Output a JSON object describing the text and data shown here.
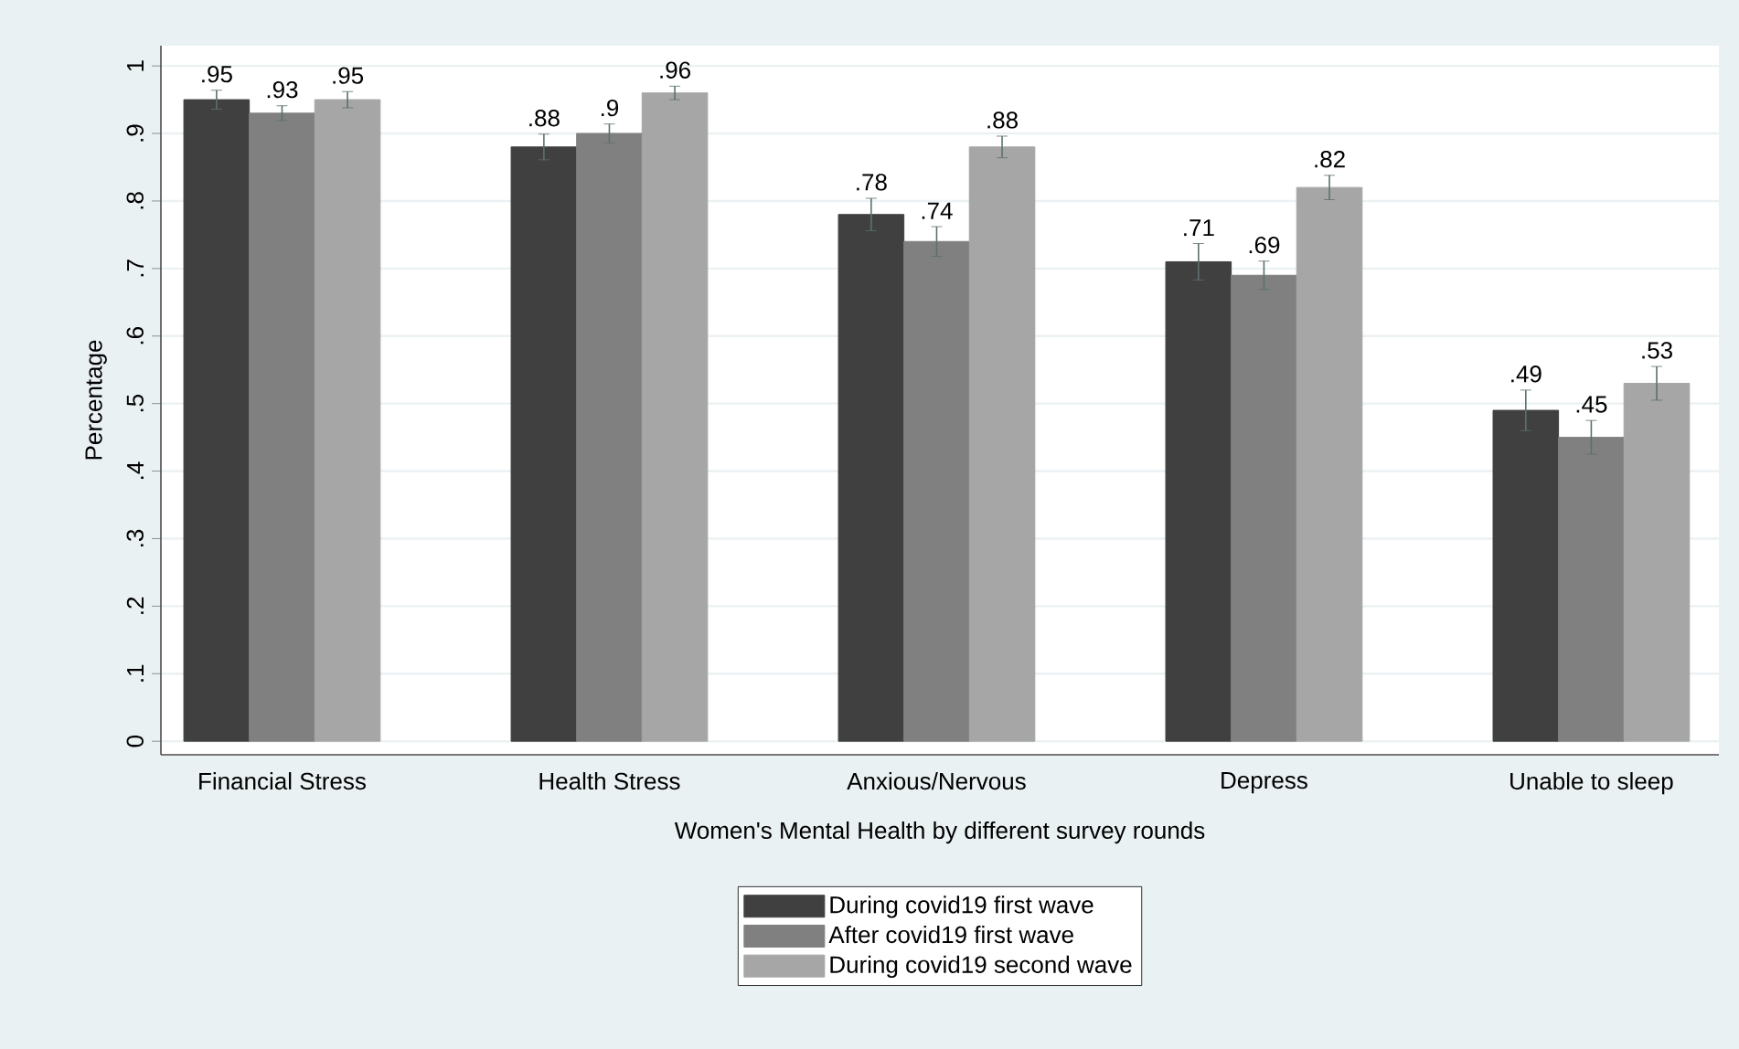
{
  "chart_data": {
    "type": "bar",
    "categories": [
      "Financial Stress",
      "Health Stress",
      "Anxious/Nervous",
      "Depress",
      "Unable to sleep"
    ],
    "series": [
      {
        "name": "During covid19 first wave",
        "color": "#404040",
        "values": [
          0.95,
          0.88,
          0.78,
          0.71,
          0.49
        ],
        "value_labels": [
          ".95",
          ".88",
          ".78",
          ".71",
          ".49"
        ],
        "errors": [
          0.014,
          0.019,
          0.024,
          0.027,
          0.03
        ]
      },
      {
        "name": "After covid19 first wave",
        "color": "#808080",
        "values": [
          0.93,
          0.9,
          0.74,
          0.69,
          0.45
        ],
        "value_labels": [
          ".93",
          ".9",
          ".74",
          ".69",
          ".45"
        ],
        "errors": [
          0.011,
          0.014,
          0.022,
          0.021,
          0.025
        ]
      },
      {
        "name": "During covid19 second wave",
        "color": "#a6a6a6",
        "values": [
          0.95,
          0.96,
          0.88,
          0.82,
          0.53
        ],
        "value_labels": [
          ".95",
          ".96",
          ".88",
          ".82",
          ".53"
        ],
        "errors": [
          0.012,
          0.01,
          0.016,
          0.018,
          0.025
        ]
      }
    ],
    "xlabel": "Women's Mental Health by different survey rounds",
    "ylabel": "Percentage",
    "ylim": [
      -0.02,
      1.03
    ],
    "yticks": [
      0,
      {
        "value": 0.1,
        "label": ".1"
      },
      {
        "value": 0.2,
        "label": ".2"
      },
      {
        "value": 0.3,
        "label": ".3"
      },
      {
        "value": 0.4,
        "label": ".4"
      },
      {
        "value": 0.5,
        "label": ".5"
      },
      {
        "value": 0.6,
        "label": ".6"
      },
      {
        "value": 0.7,
        "label": ".7"
      },
      {
        "value": 0.8,
        "label": ".8"
      },
      {
        "value": 0.9,
        "label": ".9"
      },
      1
    ],
    "grid": "y",
    "legend": "bottom"
  }
}
